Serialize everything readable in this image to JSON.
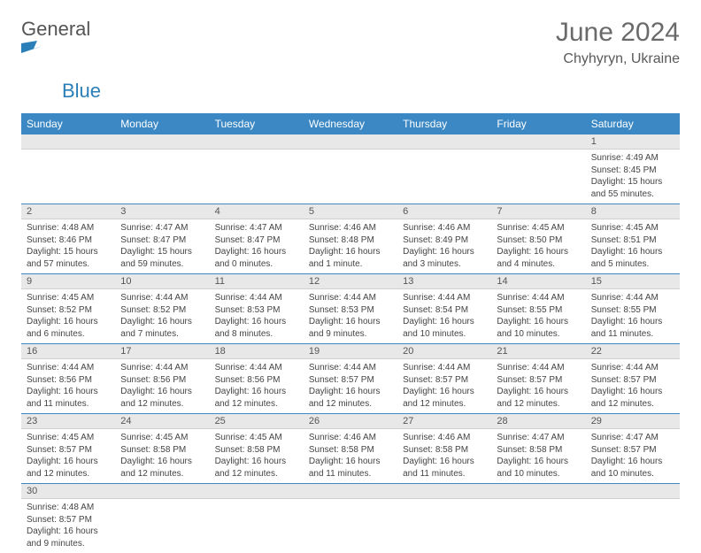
{
  "logo": {
    "word1": "General",
    "word2": "Blue"
  },
  "title": "June 2024",
  "location": "Chyhyryn, Ukraine",
  "colors": {
    "header_bg": "#3b88c4",
    "header_fg": "#ffffff",
    "row_border": "#3b88c4",
    "daybar_bg": "#e8e8e8",
    "logo_accent": "#2b7fb8"
  },
  "weekdays": [
    "Sunday",
    "Monday",
    "Tuesday",
    "Wednesday",
    "Thursday",
    "Friday",
    "Saturday"
  ],
  "weeks": [
    [
      {
        "n": "",
        "sunrise": "",
        "sunset": "",
        "daylight": ""
      },
      {
        "n": "",
        "sunrise": "",
        "sunset": "",
        "daylight": ""
      },
      {
        "n": "",
        "sunrise": "",
        "sunset": "",
        "daylight": ""
      },
      {
        "n": "",
        "sunrise": "",
        "sunset": "",
        "daylight": ""
      },
      {
        "n": "",
        "sunrise": "",
        "sunset": "",
        "daylight": ""
      },
      {
        "n": "",
        "sunrise": "",
        "sunset": "",
        "daylight": ""
      },
      {
        "n": "1",
        "sunrise": "Sunrise: 4:49 AM",
        "sunset": "Sunset: 8:45 PM",
        "daylight": "Daylight: 15 hours and 55 minutes."
      }
    ],
    [
      {
        "n": "2",
        "sunrise": "Sunrise: 4:48 AM",
        "sunset": "Sunset: 8:46 PM",
        "daylight": "Daylight: 15 hours and 57 minutes."
      },
      {
        "n": "3",
        "sunrise": "Sunrise: 4:47 AM",
        "sunset": "Sunset: 8:47 PM",
        "daylight": "Daylight: 15 hours and 59 minutes."
      },
      {
        "n": "4",
        "sunrise": "Sunrise: 4:47 AM",
        "sunset": "Sunset: 8:47 PM",
        "daylight": "Daylight: 16 hours and 0 minutes."
      },
      {
        "n": "5",
        "sunrise": "Sunrise: 4:46 AM",
        "sunset": "Sunset: 8:48 PM",
        "daylight": "Daylight: 16 hours and 1 minute."
      },
      {
        "n": "6",
        "sunrise": "Sunrise: 4:46 AM",
        "sunset": "Sunset: 8:49 PM",
        "daylight": "Daylight: 16 hours and 3 minutes."
      },
      {
        "n": "7",
        "sunrise": "Sunrise: 4:45 AM",
        "sunset": "Sunset: 8:50 PM",
        "daylight": "Daylight: 16 hours and 4 minutes."
      },
      {
        "n": "8",
        "sunrise": "Sunrise: 4:45 AM",
        "sunset": "Sunset: 8:51 PM",
        "daylight": "Daylight: 16 hours and 5 minutes."
      }
    ],
    [
      {
        "n": "9",
        "sunrise": "Sunrise: 4:45 AM",
        "sunset": "Sunset: 8:52 PM",
        "daylight": "Daylight: 16 hours and 6 minutes."
      },
      {
        "n": "10",
        "sunrise": "Sunrise: 4:44 AM",
        "sunset": "Sunset: 8:52 PM",
        "daylight": "Daylight: 16 hours and 7 minutes."
      },
      {
        "n": "11",
        "sunrise": "Sunrise: 4:44 AM",
        "sunset": "Sunset: 8:53 PM",
        "daylight": "Daylight: 16 hours and 8 minutes."
      },
      {
        "n": "12",
        "sunrise": "Sunrise: 4:44 AM",
        "sunset": "Sunset: 8:53 PM",
        "daylight": "Daylight: 16 hours and 9 minutes."
      },
      {
        "n": "13",
        "sunrise": "Sunrise: 4:44 AM",
        "sunset": "Sunset: 8:54 PM",
        "daylight": "Daylight: 16 hours and 10 minutes."
      },
      {
        "n": "14",
        "sunrise": "Sunrise: 4:44 AM",
        "sunset": "Sunset: 8:55 PM",
        "daylight": "Daylight: 16 hours and 10 minutes."
      },
      {
        "n": "15",
        "sunrise": "Sunrise: 4:44 AM",
        "sunset": "Sunset: 8:55 PM",
        "daylight": "Daylight: 16 hours and 11 minutes."
      }
    ],
    [
      {
        "n": "16",
        "sunrise": "Sunrise: 4:44 AM",
        "sunset": "Sunset: 8:56 PM",
        "daylight": "Daylight: 16 hours and 11 minutes."
      },
      {
        "n": "17",
        "sunrise": "Sunrise: 4:44 AM",
        "sunset": "Sunset: 8:56 PM",
        "daylight": "Daylight: 16 hours and 12 minutes."
      },
      {
        "n": "18",
        "sunrise": "Sunrise: 4:44 AM",
        "sunset": "Sunset: 8:56 PM",
        "daylight": "Daylight: 16 hours and 12 minutes."
      },
      {
        "n": "19",
        "sunrise": "Sunrise: 4:44 AM",
        "sunset": "Sunset: 8:57 PM",
        "daylight": "Daylight: 16 hours and 12 minutes."
      },
      {
        "n": "20",
        "sunrise": "Sunrise: 4:44 AM",
        "sunset": "Sunset: 8:57 PM",
        "daylight": "Daylight: 16 hours and 12 minutes."
      },
      {
        "n": "21",
        "sunrise": "Sunrise: 4:44 AM",
        "sunset": "Sunset: 8:57 PM",
        "daylight": "Daylight: 16 hours and 12 minutes."
      },
      {
        "n": "22",
        "sunrise": "Sunrise: 4:44 AM",
        "sunset": "Sunset: 8:57 PM",
        "daylight": "Daylight: 16 hours and 12 minutes."
      }
    ],
    [
      {
        "n": "23",
        "sunrise": "Sunrise: 4:45 AM",
        "sunset": "Sunset: 8:57 PM",
        "daylight": "Daylight: 16 hours and 12 minutes."
      },
      {
        "n": "24",
        "sunrise": "Sunrise: 4:45 AM",
        "sunset": "Sunset: 8:58 PM",
        "daylight": "Daylight: 16 hours and 12 minutes."
      },
      {
        "n": "25",
        "sunrise": "Sunrise: 4:45 AM",
        "sunset": "Sunset: 8:58 PM",
        "daylight": "Daylight: 16 hours and 12 minutes."
      },
      {
        "n": "26",
        "sunrise": "Sunrise: 4:46 AM",
        "sunset": "Sunset: 8:58 PM",
        "daylight": "Daylight: 16 hours and 11 minutes."
      },
      {
        "n": "27",
        "sunrise": "Sunrise: 4:46 AM",
        "sunset": "Sunset: 8:58 PM",
        "daylight": "Daylight: 16 hours and 11 minutes."
      },
      {
        "n": "28",
        "sunrise": "Sunrise: 4:47 AM",
        "sunset": "Sunset: 8:58 PM",
        "daylight": "Daylight: 16 hours and 10 minutes."
      },
      {
        "n": "29",
        "sunrise": "Sunrise: 4:47 AM",
        "sunset": "Sunset: 8:57 PM",
        "daylight": "Daylight: 16 hours and 10 minutes."
      }
    ],
    [
      {
        "n": "30",
        "sunrise": "Sunrise: 4:48 AM",
        "sunset": "Sunset: 8:57 PM",
        "daylight": "Daylight: 16 hours and 9 minutes."
      },
      {
        "n": "",
        "sunrise": "",
        "sunset": "",
        "daylight": ""
      },
      {
        "n": "",
        "sunrise": "",
        "sunset": "",
        "daylight": ""
      },
      {
        "n": "",
        "sunrise": "",
        "sunset": "",
        "daylight": ""
      },
      {
        "n": "",
        "sunrise": "",
        "sunset": "",
        "daylight": ""
      },
      {
        "n": "",
        "sunrise": "",
        "sunset": "",
        "daylight": ""
      },
      {
        "n": "",
        "sunrise": "",
        "sunset": "",
        "daylight": ""
      }
    ]
  ]
}
